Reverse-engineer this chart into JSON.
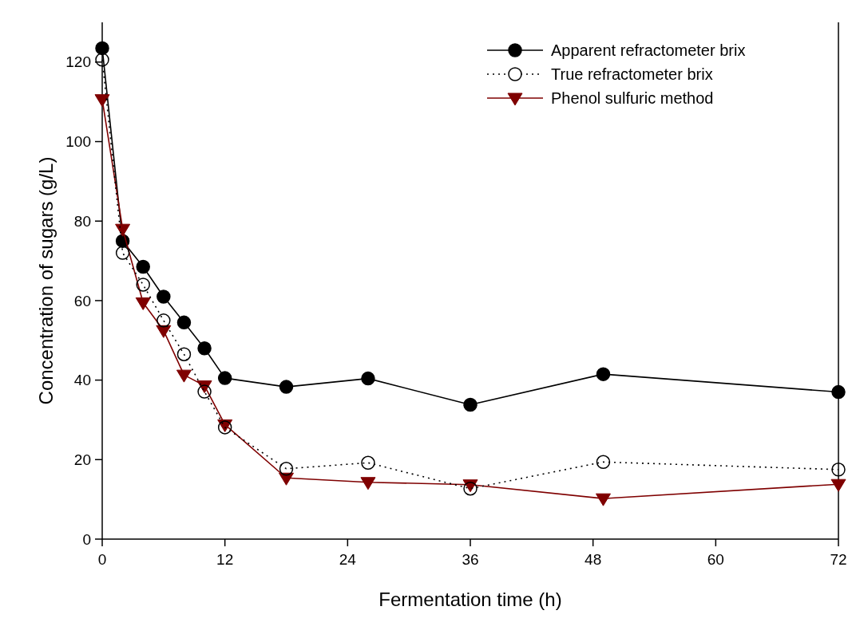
{
  "chart_data": {
    "type": "line",
    "xlabel": "Fermentation time (h)",
    "ylabel": "Concentration of sugars (g/L)",
    "xlim": [
      0,
      72
    ],
    "xticks": [
      0,
      12,
      24,
      36,
      48,
      60,
      72
    ],
    "ylim": [
      0,
      130
    ],
    "yticks": [
      0,
      20,
      40,
      60,
      80,
      100,
      120
    ],
    "grid": false,
    "legend": "top right",
    "x": [
      0,
      2,
      4,
      6,
      8,
      10,
      12,
      18,
      26,
      36,
      49,
      72
    ],
    "series": [
      {
        "name": "Apparent refractometer brix",
        "color": "#000000",
        "marker": "circle",
        "line_style": "solid",
        "values": [
          123.5,
          75,
          68.5,
          61,
          54.5,
          48,
          40.5,
          38.3,
          40.4,
          33.8,
          41.5,
          37
        ]
      },
      {
        "name": "True refractometer brix",
        "color": "#000000",
        "marker": "circle",
        "line_style": "dotted",
        "values": [
          120.6,
          72,
          64,
          55,
          46.5,
          37.1,
          28.1,
          17.7,
          19.2,
          12.7,
          19.4,
          17.5
        ]
      },
      {
        "name": "Phenol sulfuric method",
        "color": "#7f0000",
        "marker": "triangle",
        "line_style": "solid",
        "values": [
          110.6,
          78,
          59.5,
          52.5,
          41.3,
          38.6,
          28.8,
          15.4,
          14.3,
          13.7,
          10.2,
          13.8
        ]
      }
    ]
  }
}
